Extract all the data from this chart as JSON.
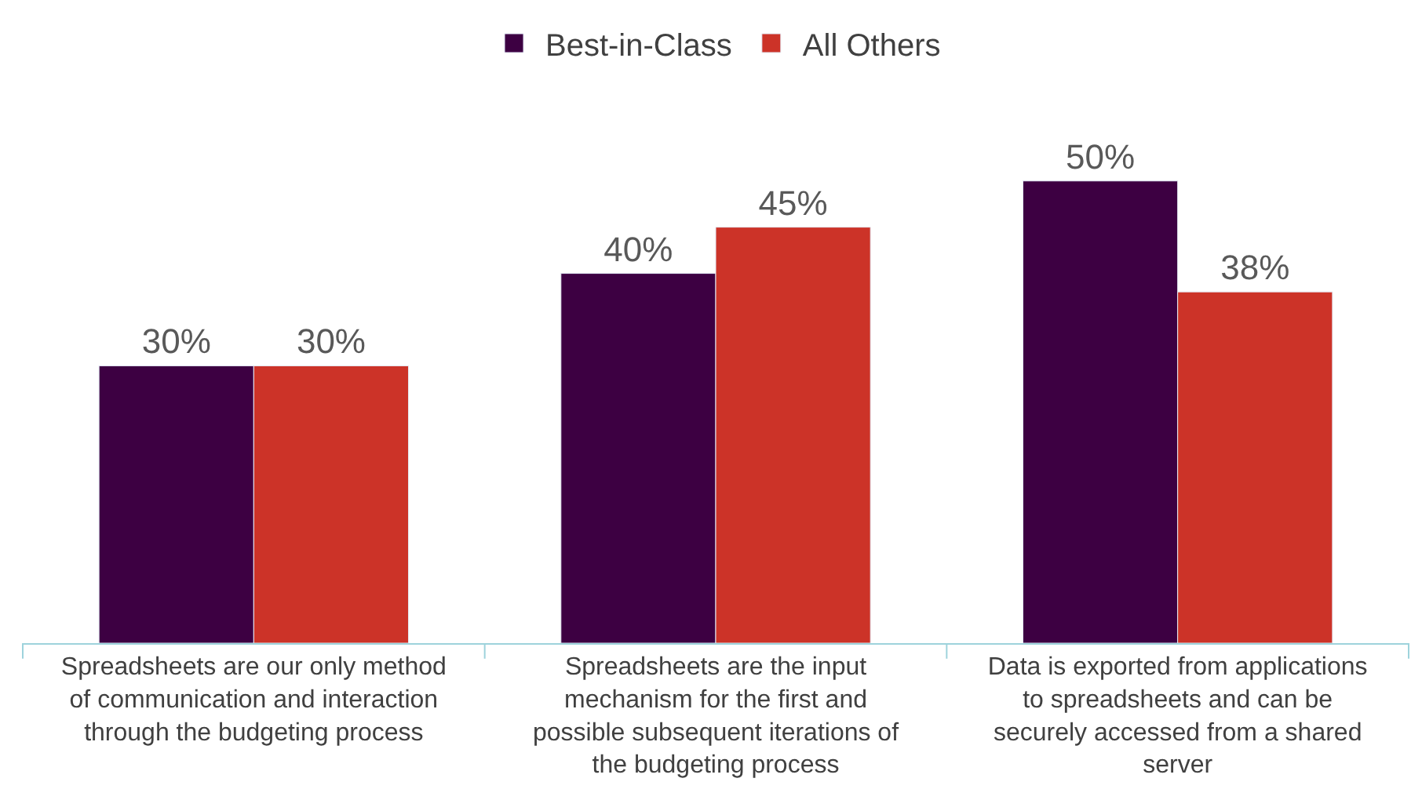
{
  "chart_data": {
    "type": "bar",
    "categories": [
      "Spreadsheets are our only method of communication and interaction through the budgeting process",
      "Spreadsheets are the input mechanism for the first and possible subsequent iterations of the budgeting process",
      "Data is exported from applications to spreadsheets and can be securely accessed from a shared server"
    ],
    "series": [
      {
        "name": "Best-in-Class",
        "color": "#3d0042",
        "values": [
          30,
          40,
          50
        ],
        "value_labels": [
          "30%",
          "40%",
          "50%"
        ]
      },
      {
        "name": "All Others",
        "color": "#cc3328",
        "values": [
          30,
          45,
          38
        ],
        "value_labels": [
          "30%",
          "45%",
          "38%"
        ]
      }
    ],
    "legend": "top"
  }
}
